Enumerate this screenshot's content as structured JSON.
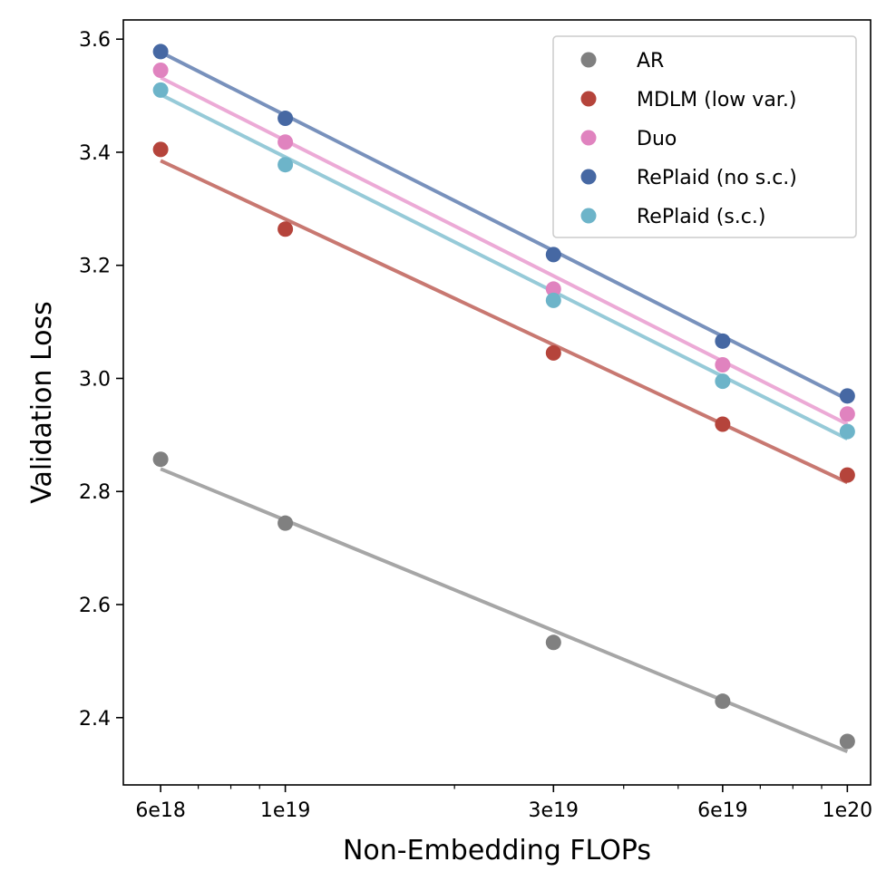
{
  "chart_data": {
    "type": "scatter",
    "xlabel": "Non-Embedding FLOPs",
    "ylabel": "Validation Loss",
    "x_scale": "log",
    "xlim": [
      5.15e+18,
      1.1e+20
    ],
    "ylim": [
      2.281,
      3.634
    ],
    "x_ticks": [
      {
        "value": 6e+18,
        "label": "6e18"
      },
      {
        "value": 1e+19,
        "label": "1e19"
      },
      {
        "value": 3e+19,
        "label": "3e19"
      },
      {
        "value": 6e+19,
        "label": "6e19"
      },
      {
        "value": 1e+20,
        "label": "1e20"
      }
    ],
    "x_minor_ticks": [
      7e+18,
      8e+18,
      9e+18,
      2e+19,
      4e+19,
      5e+19,
      7e+19,
      8e+19,
      9e+19
    ],
    "y_ticks": [
      {
        "value": 2.4,
        "label": "2.4"
      },
      {
        "value": 2.6,
        "label": "2.6"
      },
      {
        "value": 2.8,
        "label": "2.8"
      },
      {
        "value": 3.0,
        "label": "3.0"
      },
      {
        "value": 3.2,
        "label": "3.2"
      },
      {
        "value": 3.4,
        "label": "3.4"
      },
      {
        "value": 3.6,
        "label": "3.6"
      }
    ],
    "grid": false,
    "legend_position": "top-right",
    "x": [
      6e+18,
      1e+19,
      3e+19,
      6e+19,
      1e+20
    ],
    "series": [
      {
        "name": "AR",
        "color": "#808080",
        "line_color": "#a6a6a6",
        "values": [
          2.857,
          2.744,
          2.533,
          2.429,
          2.358
        ],
        "fit": [
          2.84,
          2.34
        ]
      },
      {
        "name": "MDLM (low var.)",
        "color": "#b5443b",
        "line_color": "#c87871",
        "values": [
          3.405,
          3.264,
          3.045,
          2.919,
          2.829
        ],
        "fit": [
          3.385,
          2.816
        ]
      },
      {
        "name": "Duo",
        "color": "#e083bf",
        "line_color": "#ecaad6",
        "values": [
          3.545,
          3.418,
          3.158,
          3.024,
          2.937
        ],
        "fit": [
          3.532,
          2.919
        ]
      },
      {
        "name": "RePlaid (no s.c.)",
        "color": "#4668a3",
        "line_color": "#7891bc",
        "values": [
          3.578,
          3.46,
          3.219,
          3.066,
          2.969
        ],
        "fit": [
          3.577,
          2.963
        ]
      },
      {
        "name": "RePlaid (s.c.)",
        "color": "#6db4c9",
        "line_color": "#96cad8",
        "values": [
          3.51,
          3.378,
          3.138,
          2.995,
          2.906
        ],
        "fit": [
          3.502,
          2.893
        ]
      }
    ]
  }
}
